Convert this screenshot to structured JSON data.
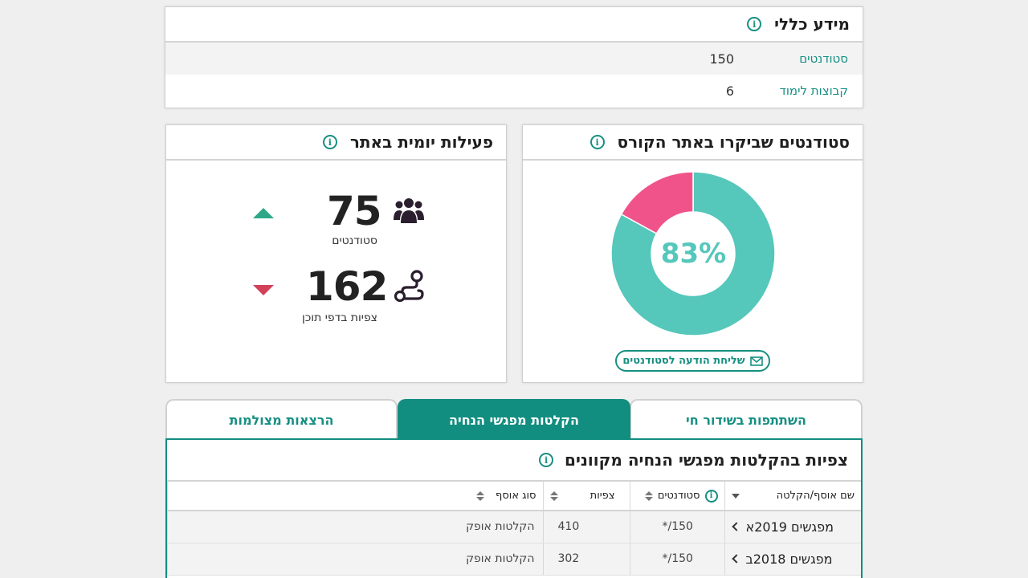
{
  "general": {
    "title": "מידע כללי",
    "rows": [
      {
        "label": "סטודנטים",
        "value": "150"
      },
      {
        "label": "קבוצות לימוד",
        "value": "6"
      }
    ]
  },
  "visitors": {
    "title": "סטודנטים שביקרו באתר הקורס",
    "percent_label": "83%",
    "send_button": "שליחת הודעה לסטודנטים",
    "colors": {
      "visited": "#55c7bb",
      "not_visited": "#f0538a"
    }
  },
  "chart_data": {
    "type": "pie",
    "categories": [
      "",
      ""
    ],
    "values": [
      83,
      17
    ]
  },
  "daily": {
    "title": "פעילות יומית באתר",
    "students": {
      "value": "75",
      "label": "סטודנטים",
      "trend": "up"
    },
    "views": {
      "value": "162",
      "label": "צפיות בדפי תוכן",
      "trend": "down"
    }
  },
  "tabs": [
    {
      "label": "השתתפות בשידור חי",
      "active": false
    },
    {
      "label": "הקלטות מפגשי הנחיה",
      "active": true
    },
    {
      "label": "הרצאות מצולמות",
      "active": false
    }
  ],
  "panel": {
    "title": "צפיות בהקלטות מפגשי הנחיה מקוונים",
    "columns": [
      "שם אוסף/הקלטה",
      "סטודנטים",
      "צפיות",
      "סוג אוסף"
    ],
    "rows": [
      {
        "name": "מפגשים 2019א",
        "students": "150/*",
        "views": "410",
        "type": "הקלטות אופק"
      },
      {
        "name": "מפגשים 2018ב",
        "students": "150/*",
        "views": "302",
        "type": "הקלטות אופק"
      }
    ]
  }
}
